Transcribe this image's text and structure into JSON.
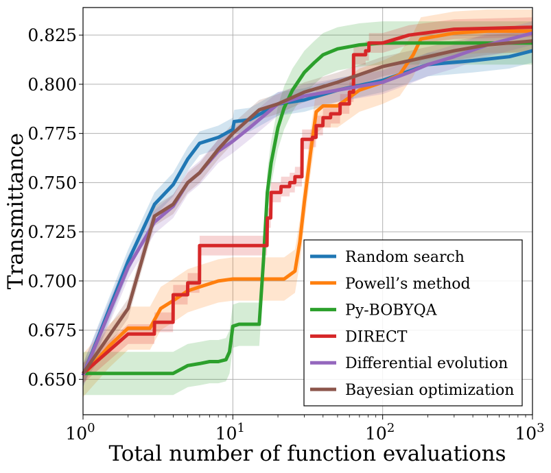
{
  "chart_data": {
    "type": "line",
    "title": "",
    "xlabel": "Total number of function evaluations",
    "ylabel": "Transmittance",
    "xscale": "log",
    "xlim": [
      1,
      1000
    ],
    "ylim": [
      0.632,
      0.839
    ],
    "grid": true,
    "legend_position": "lower-right",
    "x_ticks": [
      {
        "value": 1,
        "base": "10",
        "exp": "0"
      },
      {
        "value": 10,
        "base": "10",
        "exp": "1"
      },
      {
        "value": 100,
        "base": "10",
        "exp": "2"
      },
      {
        "value": 1000,
        "base": "10",
        "exp": "3"
      }
    ],
    "y_ticks": [
      {
        "value": 0.65,
        "label": "0.650"
      },
      {
        "value": 0.675,
        "label": "0.675"
      },
      {
        "value": 0.7,
        "label": "0.700"
      },
      {
        "value": 0.725,
        "label": "0.725"
      },
      {
        "value": 0.75,
        "label": "0.750"
      },
      {
        "value": 0.775,
        "label": "0.775"
      },
      {
        "value": 0.8,
        "label": "0.800"
      },
      {
        "value": 0.825,
        "label": "0.825"
      }
    ],
    "series": [
      {
        "name": "Random search",
        "color": "#1f77b4",
        "band": 0.006,
        "points": [
          [
            1,
            0.652
          ],
          [
            2,
            0.71
          ],
          [
            3,
            0.739
          ],
          [
            4,
            0.749
          ],
          [
            5,
            0.762
          ],
          [
            6,
            0.77
          ],
          [
            8,
            0.773
          ],
          [
            10,
            0.777
          ],
          [
            10.2,
            0.781
          ],
          [
            13,
            0.782
          ],
          [
            20,
            0.79
          ],
          [
            30,
            0.792
          ],
          [
            50,
            0.797
          ],
          [
            100,
            0.802
          ],
          [
            200,
            0.81
          ],
          [
            400,
            0.812
          ],
          [
            700,
            0.814
          ],
          [
            1000,
            0.817
          ]
        ]
      },
      {
        "name": "Powell’s method",
        "color": "#ff7f0e",
        "band": 0.011,
        "points": [
          [
            1,
            0.652
          ],
          [
            1.5,
            0.667
          ],
          [
            2,
            0.676
          ],
          [
            2.8,
            0.676
          ],
          [
            3.3,
            0.686
          ],
          [
            4,
            0.69
          ],
          [
            5,
            0.695
          ],
          [
            6,
            0.697
          ],
          [
            8,
            0.7
          ],
          [
            10,
            0.701
          ],
          [
            15,
            0.701
          ],
          [
            22,
            0.701
          ],
          [
            26,
            0.705
          ],
          [
            28,
            0.72
          ],
          [
            30,
            0.74
          ],
          [
            33,
            0.765
          ],
          [
            36,
            0.786
          ],
          [
            40,
            0.789
          ],
          [
            50,
            0.789
          ],
          [
            70,
            0.797
          ],
          [
            100,
            0.801
          ],
          [
            130,
            0.805
          ],
          [
            160,
            0.815
          ],
          [
            180,
            0.823
          ],
          [
            300,
            0.826
          ],
          [
            500,
            0.827
          ],
          [
            1000,
            0.827
          ]
        ]
      },
      {
        "name": "Py-BOBYQA",
        "color": "#2ca02c",
        "band": 0.011,
        "points": [
          [
            1,
            0.653
          ],
          [
            2,
            0.653
          ],
          [
            4,
            0.653
          ],
          [
            5,
            0.657
          ],
          [
            6,
            0.658
          ],
          [
            7,
            0.659
          ],
          [
            8,
            0.659
          ],
          [
            9,
            0.66
          ],
          [
            9.5,
            0.664
          ],
          [
            10,
            0.677
          ],
          [
            11,
            0.678
          ],
          [
            15,
            0.678
          ],
          [
            16,
            0.71
          ],
          [
            17,
            0.745
          ],
          [
            18,
            0.76
          ],
          [
            20,
            0.778
          ],
          [
            22,
            0.788
          ],
          [
            25,
            0.797
          ],
          [
            30,
            0.806
          ],
          [
            35,
            0.811
          ],
          [
            40,
            0.815
          ],
          [
            50,
            0.818
          ],
          [
            70,
            0.82
          ],
          [
            100,
            0.821
          ],
          [
            300,
            0.821
          ],
          [
            1000,
            0.821
          ]
        ]
      },
      {
        "name": "DIRECT",
        "color": "#d62728",
        "band": 0.005,
        "points": [
          [
            1,
            0.653
          ],
          [
            2,
            0.673
          ],
          [
            2.99,
            0.673
          ],
          [
            3,
            0.679
          ],
          [
            3.99,
            0.679
          ],
          [
            4,
            0.693
          ],
          [
            4.99,
            0.693
          ],
          [
            5,
            0.699
          ],
          [
            5.99,
            0.699
          ],
          [
            6,
            0.718
          ],
          [
            16.9,
            0.718
          ],
          [
            17,
            0.732
          ],
          [
            17.9,
            0.732
          ],
          [
            18,
            0.745
          ],
          [
            20.9,
            0.745
          ],
          [
            21,
            0.748
          ],
          [
            23.9,
            0.748
          ],
          [
            24,
            0.75
          ],
          [
            25.9,
            0.75
          ],
          [
            26,
            0.753
          ],
          [
            28.9,
            0.753
          ],
          [
            29,
            0.772
          ],
          [
            33.9,
            0.772
          ],
          [
            34,
            0.773
          ],
          [
            35.9,
            0.773
          ],
          [
            36,
            0.779
          ],
          [
            39.9,
            0.779
          ],
          [
            40,
            0.783
          ],
          [
            44.9,
            0.783
          ],
          [
            45,
            0.785
          ],
          [
            51.9,
            0.785
          ],
          [
            52,
            0.79
          ],
          [
            59.9,
            0.79
          ],
          [
            60,
            0.796
          ],
          [
            63.9,
            0.796
          ],
          [
            64,
            0.815
          ],
          [
            76.9,
            0.815
          ],
          [
            77,
            0.817
          ],
          [
            80.9,
            0.817
          ],
          [
            81,
            0.821
          ],
          [
            100,
            0.821
          ],
          [
            150,
            0.825
          ],
          [
            300,
            0.828
          ],
          [
            1000,
            0.829
          ]
        ]
      },
      {
        "name": "Differential evolution",
        "color": "#9467bd",
        "band": 0.006,
        "points": [
          [
            1,
            0.652
          ],
          [
            2,
            0.707
          ],
          [
            3,
            0.73
          ],
          [
            4,
            0.738
          ],
          [
            5,
            0.75
          ],
          [
            6,
            0.755
          ],
          [
            8,
            0.766
          ],
          [
            10,
            0.771
          ],
          [
            13,
            0.778
          ],
          [
            20,
            0.79
          ],
          [
            30,
            0.794
          ],
          [
            50,
            0.797
          ],
          [
            100,
            0.801
          ],
          [
            150,
            0.806
          ],
          [
            200,
            0.81
          ],
          [
            300,
            0.814
          ],
          [
            500,
            0.82
          ],
          [
            1000,
            0.826
          ]
        ]
      },
      {
        "name": "Bayesian optimization",
        "color": "#8c564b",
        "band": 0.005,
        "points": [
          [
            1,
            0.653
          ],
          [
            2,
            0.686
          ],
          [
            3,
            0.733
          ],
          [
            4,
            0.739
          ],
          [
            5,
            0.75
          ],
          [
            6,
            0.755
          ],
          [
            8,
            0.767
          ],
          [
            10,
            0.775
          ],
          [
            15,
            0.787
          ],
          [
            20,
            0.79
          ],
          [
            30,
            0.796
          ],
          [
            50,
            0.801
          ],
          [
            100,
            0.809
          ],
          [
            200,
            0.814
          ],
          [
            300,
            0.817
          ],
          [
            500,
            0.82
          ],
          [
            1000,
            0.822
          ]
        ]
      }
    ]
  }
}
